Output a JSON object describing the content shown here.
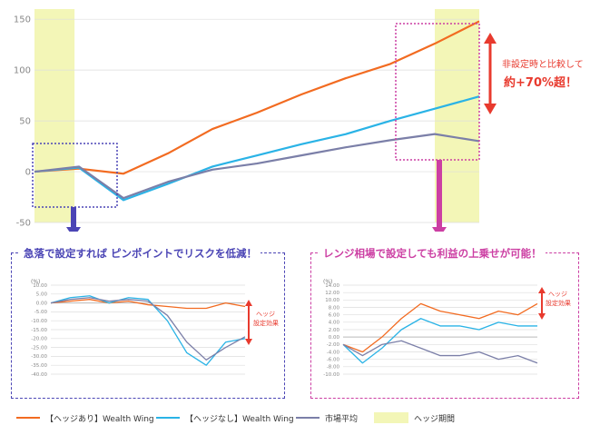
{
  "colors": {
    "hedged": "#f26b21",
    "unhedged": "#2ab3e6",
    "market": "#7b7fa8",
    "hedge_period": "#f3f6b7",
    "accent_pink": "#cc3fa3",
    "accent_blue": "#4b45b5",
    "red": "#e83a2e"
  },
  "chart_data": [
    {
      "type": "line",
      "title": "",
      "x": [
        0,
        1,
        2,
        3,
        4,
        5,
        6,
        7,
        8,
        9,
        10
      ],
      "ylim": [
        -50,
        160
      ],
      "yticks": [
        "150",
        "100",
        "50",
        "0",
        "-50"
      ],
      "series": [
        {
          "name": "【ヘッジあり】Wealth Wing",
          "values": [
            0,
            3,
            -2,
            18,
            42,
            58,
            76,
            92,
            106,
            126,
            148
          ]
        },
        {
          "name": "【ヘッジなし】Wealth Wing",
          "values": [
            0,
            4,
            -28,
            -12,
            5,
            16,
            27,
            37,
            50,
            62,
            74
          ]
        },
        {
          "name": "市場平均",
          "values": [
            0,
            5,
            -26,
            -10,
            2,
            8,
            16,
            24,
            31,
            37,
            30
          ]
        }
      ],
      "hedge_periods": [
        [
          0,
          0.9
        ],
        [
          9.0,
          10.0
        ]
      ],
      "annotation": "非設定時と比較して",
      "annotation2": "約+70%超！"
    },
    {
      "type": "line",
      "title": "急落で設定すれば ピンポイントでリスクを低減！",
      "unit": "(%)",
      "ylim": [
        -40,
        10
      ],
      "yticks": [
        "10.00",
        "5.00",
        "0.00",
        "-5.00",
        "-10.00",
        "-15.00",
        "-20.00",
        "-25.00",
        "-30.00",
        "-35.00",
        "-40.00"
      ],
      "x": [
        0,
        1,
        2,
        3,
        4,
        5,
        6,
        7,
        8,
        9,
        10
      ],
      "series": [
        {
          "name": "【ヘッジあり】Wealth Wing",
          "values": [
            0,
            1,
            2,
            0,
            1,
            -1,
            -2,
            -3,
            -3,
            0,
            -2
          ]
        },
        {
          "name": "【ヘッジなし】Wealth Wing",
          "values": [
            0,
            3,
            4,
            0,
            3,
            2,
            -10,
            -28,
            -35,
            -22,
            -20
          ]
        },
        {
          "name": "市場平均",
          "values": [
            0,
            2,
            3,
            1,
            2,
            1,
            -7,
            -22,
            -32,
            -25,
            -19
          ]
        }
      ],
      "annotation": "ヘッジ設定効果"
    },
    {
      "type": "line",
      "title": "レンジ相場で設定しても利益の上乗せが可能！",
      "unit": "(%)",
      "ylim": [
        -10,
        14
      ],
      "yticks": [
        "14.00",
        "12.00",
        "10.00",
        "8.00",
        "6.00",
        "4.00",
        "2.00",
        "0.00",
        "-2.00",
        "-4.00",
        "-6.00",
        "-8.00",
        "-10.00"
      ],
      "x": [
        0,
        1,
        2,
        3,
        4,
        5,
        6,
        7,
        8,
        9,
        10
      ],
      "series": [
        {
          "name": "【ヘッジあり】Wealth Wing",
          "values": [
            -2,
            -4,
            0,
            5,
            9,
            7,
            6,
            5,
            7,
            6,
            9
          ]
        },
        {
          "name": "【ヘッジなし】Wealth Wing",
          "values": [
            -2,
            -7,
            -3,
            2,
            5,
            3,
            3,
            2,
            4,
            3,
            3
          ]
        },
        {
          "name": "市場平均",
          "values": [
            -2,
            -5,
            -2,
            -1,
            -3,
            -5,
            -5,
            -4,
            -6,
            -5,
            -7
          ]
        }
      ],
      "annotation": "ヘッジ設定効果"
    }
  ],
  "legend": {
    "hedged": "【ヘッジあり】Wealth Wing",
    "unhedged": "【ヘッジなし】Wealth Wing",
    "market": "市場平均",
    "period": "ヘッジ期間"
  }
}
